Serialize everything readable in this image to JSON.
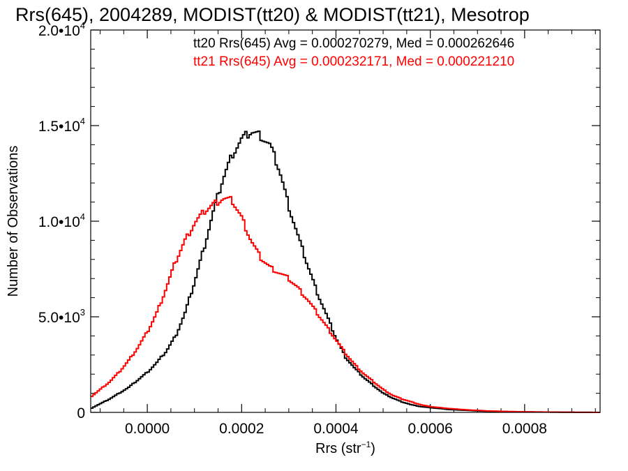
{
  "chart_data": {
    "type": "line",
    "title": "Rrs(645), 2004289, MODIST(tt20) & MODIST(tt21), Mesotrop",
    "xlabel": "Rrs (str",
    "xlabel_sup": "−1",
    "xlabel_close": ")",
    "ylabel": "Number of Observations",
    "xlim": [
      -0.00012,
      0.00096
    ],
    "ylim": [
      0,
      20000
    ],
    "x_ticks": [
      {
        "value": 0.0,
        "label": "0.0000"
      },
      {
        "value": 0.0002,
        "label": "0.0002"
      },
      {
        "value": 0.0004,
        "label": "0.0004"
      },
      {
        "value": 0.0006,
        "label": "0.0006"
      },
      {
        "value": 0.0008,
        "label": "0.0008"
      }
    ],
    "y_ticks": [
      {
        "value": 0,
        "mantissa": "0",
        "exponent": ""
      },
      {
        "value": 5000,
        "mantissa": "5.0•10",
        "exponent": "3"
      },
      {
        "value": 10000,
        "mantissa": "1.0•10",
        "exponent": "4"
      },
      {
        "value": 15000,
        "mantissa": "1.5•10",
        "exponent": "4"
      },
      {
        "value": 20000,
        "mantissa": "2.0•10",
        "exponent": "4"
      }
    ],
    "annotations": [
      {
        "text": "tt20 Rrs(645) Avg = 0.000270279, Med = 0.000262646",
        "color": "#000000"
      },
      {
        "text": "tt21 Rrs(645) Avg = 0.000232171, Med = 0.000221210",
        "color": "#ff0000"
      }
    ],
    "series": [
      {
        "color": "#000000",
        "x": [
          -0.00012,
          -0.0001,
          -8e-05,
          -6e-05,
          -4e-05,
          -2e-05,
          0.0,
          2e-05,
          4e-05,
          6e-05,
          8e-05,
          0.0001,
          0.00012,
          0.00014,
          0.00016,
          0.00018,
          0.0002,
          0.00022,
          0.00024,
          0.00026,
          0.00028,
          0.0003,
          0.00032,
          0.00034,
          0.00036,
          0.00038,
          0.0004,
          0.00042,
          0.00044,
          0.00046,
          0.00048,
          0.0005,
          0.00052,
          0.00054,
          0.00056,
          0.00058,
          0.0006,
          0.00064,
          0.00068,
          0.00072,
          0.00076,
          0.0008,
          0.00084,
          0.00088,
          0.00092,
          0.00096
        ],
        "y": [
          200,
          450,
          700,
          1000,
          1300,
          1700,
          2100,
          2600,
          3200,
          4000,
          5200,
          6800,
          8600,
          10500,
          12200,
          13500,
          14300,
          14700,
          14500,
          14000,
          12700,
          10800,
          9200,
          7700,
          6300,
          5100,
          3900,
          2900,
          2300,
          1800,
          1400,
          1000,
          750,
          550,
          400,
          300,
          250,
          150,
          100,
          60,
          40,
          30,
          20,
          10,
          5,
          0
        ]
      },
      {
        "color": "#ff0000",
        "x": [
          -0.00012,
          -0.0001,
          -8e-05,
          -6e-05,
          -4e-05,
          -2e-05,
          0.0,
          2e-05,
          4e-05,
          6e-05,
          8e-05,
          0.0001,
          0.00012,
          0.00014,
          0.00016,
          0.00018,
          0.0002,
          0.00022,
          0.00024,
          0.00026,
          0.00028,
          0.0003,
          0.00032,
          0.00034,
          0.00036,
          0.00038,
          0.0004,
          0.00042,
          0.00044,
          0.00046,
          0.00048,
          0.0005,
          0.00052,
          0.00054,
          0.00056,
          0.00058,
          0.0006,
          0.00064,
          0.00068,
          0.00072,
          0.00076,
          0.0008,
          0.00084,
          0.00088,
          0.00092,
          0.00096
        ],
        "y": [
          800,
          1200,
          1600,
          2100,
          2700,
          3400,
          4200,
          5200,
          6500,
          7900,
          9000,
          9900,
          10500,
          10900,
          11200,
          11100,
          10200,
          9000,
          8100,
          7600,
          7300,
          7000,
          6500,
          5900,
          5200,
          4500,
          3800,
          3100,
          2500,
          2000,
          1600,
          1200,
          900,
          700,
          550,
          400,
          300,
          200,
          130,
          80,
          50,
          30,
          20,
          10,
          5,
          0
        ]
      }
    ]
  }
}
